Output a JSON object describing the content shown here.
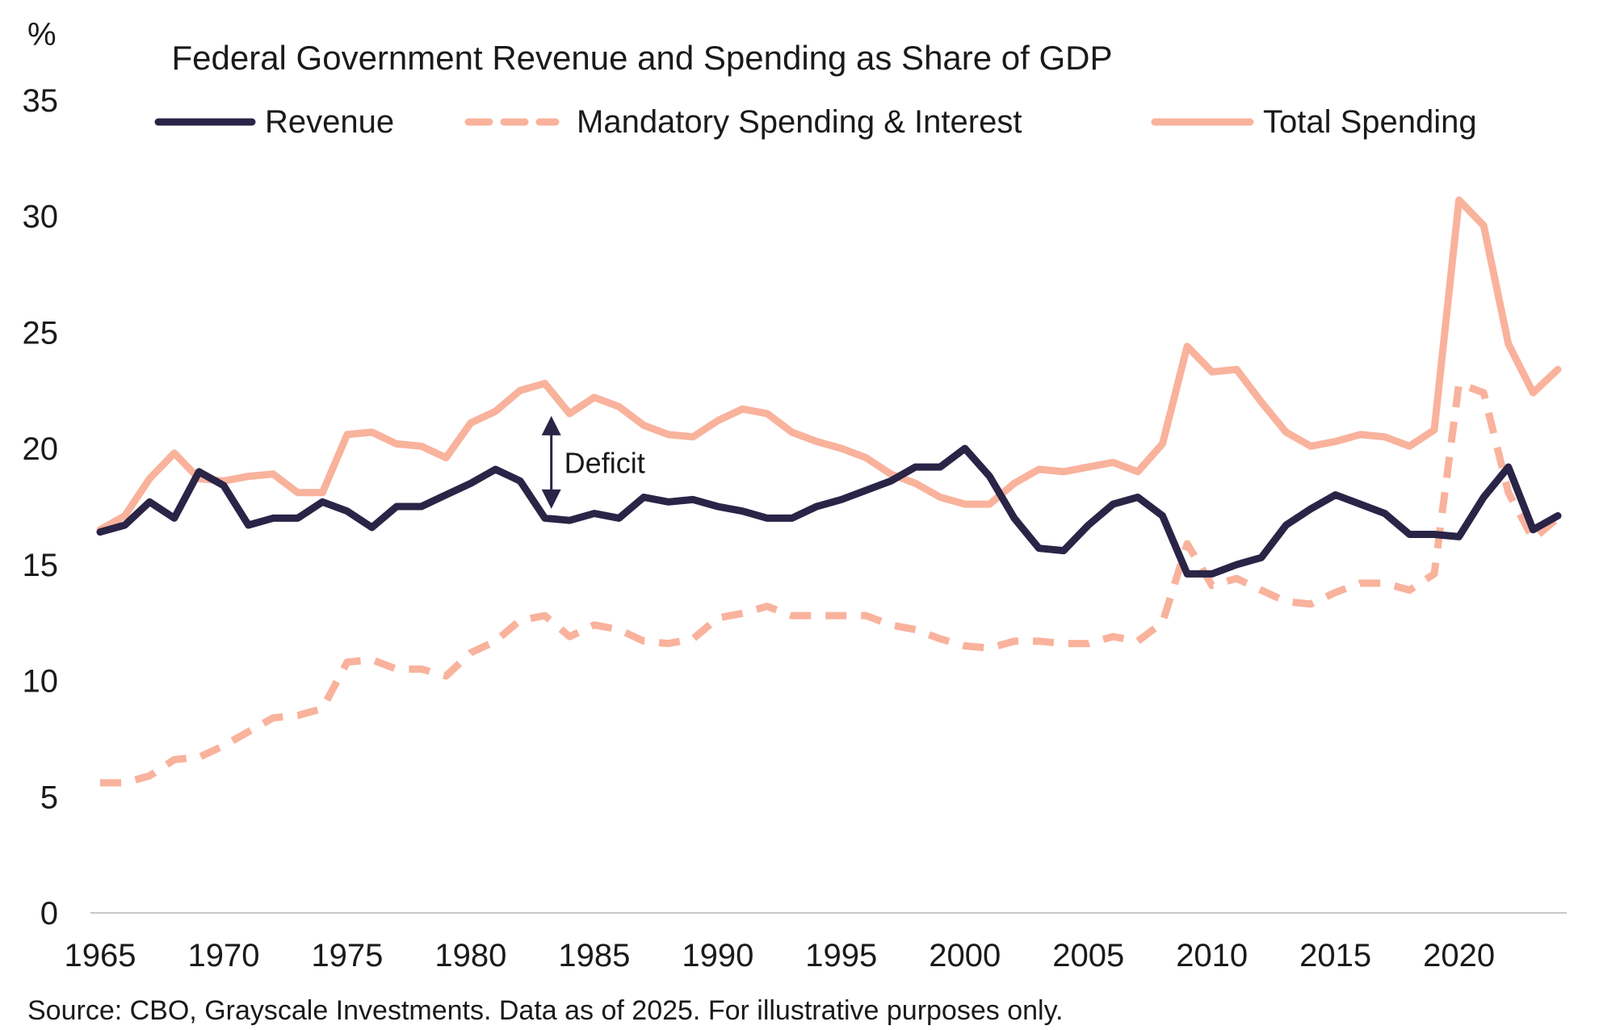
{
  "chart_data": {
    "type": "line",
    "title": "Federal Government Revenue and Spending as Share of GDP",
    "ylabel": "%",
    "xlabel": "",
    "ylim": [
      0,
      35
    ],
    "xlim": [
      1965,
      2024
    ],
    "y_ticks": [
      0,
      5,
      10,
      15,
      20,
      25,
      30,
      35
    ],
    "x_ticks": [
      1965,
      1970,
      1975,
      1980,
      1985,
      1990,
      1995,
      2000,
      2005,
      2010,
      2015,
      2020
    ],
    "grid": false,
    "legend_position": "top",
    "annotation": {
      "label": "Deficit",
      "year": 1983,
      "from": 21.4,
      "to": 17.4
    },
    "source": "Source: CBO, Grayscale Investments. Data as of 2025. For illustrative purposes only.",
    "x": [
      1965,
      1966,
      1967,
      1968,
      1969,
      1970,
      1971,
      1972,
      1973,
      1974,
      1975,
      1976,
      1977,
      1978,
      1979,
      1980,
      1981,
      1982,
      1983,
      1984,
      1985,
      1986,
      1987,
      1988,
      1989,
      1990,
      1991,
      1992,
      1993,
      1994,
      1995,
      1996,
      1997,
      1998,
      1999,
      2000,
      2001,
      2002,
      2003,
      2004,
      2005,
      2006,
      2007,
      2008,
      2009,
      2010,
      2011,
      2012,
      2013,
      2014,
      2015,
      2016,
      2017,
      2018,
      2019,
      2020,
      2021,
      2022,
      2023,
      2024
    ],
    "series": [
      {
        "name": "Revenue",
        "color": "#2a2447",
        "dash": "solid",
        "values": [
          16.4,
          16.7,
          17.7,
          17.0,
          19.0,
          18.4,
          16.7,
          17.0,
          17.0,
          17.7,
          17.3,
          16.6,
          17.5,
          17.5,
          18.0,
          18.5,
          19.1,
          18.6,
          17.0,
          16.9,
          17.2,
          17.0,
          17.9,
          17.7,
          17.8,
          17.5,
          17.3,
          17.0,
          17.0,
          17.5,
          17.8,
          18.2,
          18.6,
          19.2,
          19.2,
          20.0,
          18.8,
          17.0,
          15.7,
          15.6,
          16.7,
          17.6,
          17.9,
          17.1,
          14.6,
          14.6,
          15.0,
          15.3,
          16.7,
          17.4,
          18.0,
          17.6,
          17.2,
          16.3,
          16.3,
          16.2,
          17.9,
          19.2,
          16.5,
          17.1
        ]
      },
      {
        "name": "Mandatory Spending & Interest",
        "color": "#f9b29c",
        "dash": "dashed",
        "values": [
          5.6,
          5.6,
          5.9,
          6.6,
          6.7,
          7.2,
          7.8,
          8.4,
          8.5,
          8.8,
          10.8,
          10.9,
          10.5,
          10.5,
          10.2,
          11.2,
          11.7,
          12.6,
          12.8,
          11.9,
          12.4,
          12.2,
          11.7,
          11.6,
          11.8,
          12.7,
          12.9,
          13.2,
          12.8,
          12.8,
          12.8,
          12.8,
          12.4,
          12.2,
          11.8,
          11.5,
          11.4,
          11.7,
          11.7,
          11.6,
          11.6,
          11.9,
          11.7,
          12.5,
          15.9,
          14.1,
          14.4,
          13.9,
          13.4,
          13.3,
          13.8,
          14.2,
          14.2,
          13.9,
          14.6,
          22.8,
          22.4,
          18.1,
          16.1,
          17.0
        ]
      },
      {
        "name": "Total Spending",
        "color": "#f9b29c",
        "dash": "solid",
        "values": [
          16.5,
          17.1,
          18.7,
          19.8,
          18.7,
          18.6,
          18.8,
          18.9,
          18.1,
          18.1,
          20.6,
          20.7,
          20.2,
          20.1,
          19.6,
          21.1,
          21.6,
          22.5,
          22.8,
          21.5,
          22.2,
          21.8,
          21.0,
          20.6,
          20.5,
          21.2,
          21.7,
          21.5,
          20.7,
          20.3,
          20.0,
          19.6,
          18.9,
          18.5,
          17.9,
          17.6,
          17.6,
          18.5,
          19.1,
          19.0,
          19.2,
          19.4,
          19.0,
          20.2,
          24.4,
          23.3,
          23.4,
          22.0,
          20.7,
          20.1,
          20.3,
          20.6,
          20.5,
          20.1,
          20.8,
          30.7,
          29.6,
          24.5,
          22.4,
          23.4
        ]
      }
    ]
  }
}
